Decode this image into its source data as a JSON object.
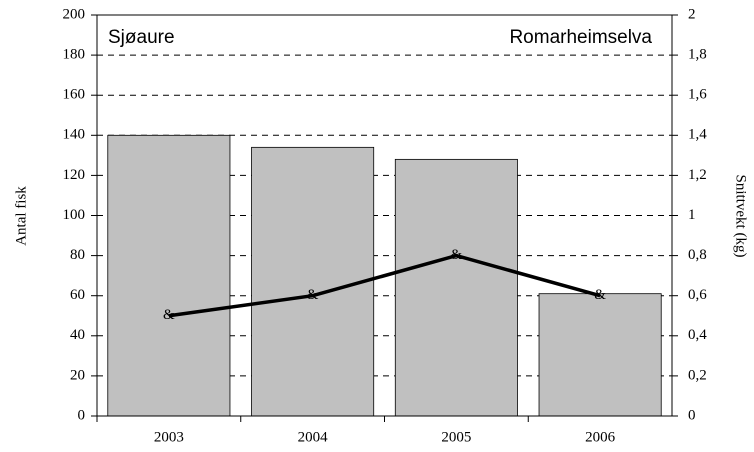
{
  "chart_data": {
    "type": "bar_line",
    "annotations": [
      "Sjøaure",
      "Romarheimselva"
    ],
    "ylabel": "Antal fisk",
    "y2label": "Snittvekt (kg)",
    "categories": [
      "2003",
      "2004",
      "2005",
      "2006"
    ],
    "series": [
      {
        "type": "bar",
        "color": "#c0c0c0",
        "values": [
          140,
          134,
          128,
          61
        ]
      },
      {
        "type": "line",
        "color": "#000000",
        "axis": "y2",
        "marker": "&",
        "values": [
          0.5,
          0.6,
          0.8,
          0.6
        ]
      }
    ],
    "ylim": [
      0,
      200
    ],
    "yticks": [
      0,
      20,
      40,
      60,
      80,
      100,
      120,
      140,
      160,
      180,
      200
    ],
    "y2lim": [
      0,
      2
    ],
    "y2ticks": [
      0,
      {
        "value": 0.2,
        "label": "0,2"
      },
      {
        "value": 0.4,
        "label": "0,4"
      },
      {
        "value": 0.6,
        "label": "0,6"
      },
      {
        "value": 0.8,
        "label": "0,8"
      },
      1,
      {
        "value": 1.2,
        "label": "1,2"
      },
      {
        "value": 1.4,
        "label": "1,4"
      },
      {
        "value": 1.6,
        "label": "1,6"
      },
      {
        "value": 1.8,
        "label": "1,8"
      },
      2
    ],
    "grid": true
  }
}
